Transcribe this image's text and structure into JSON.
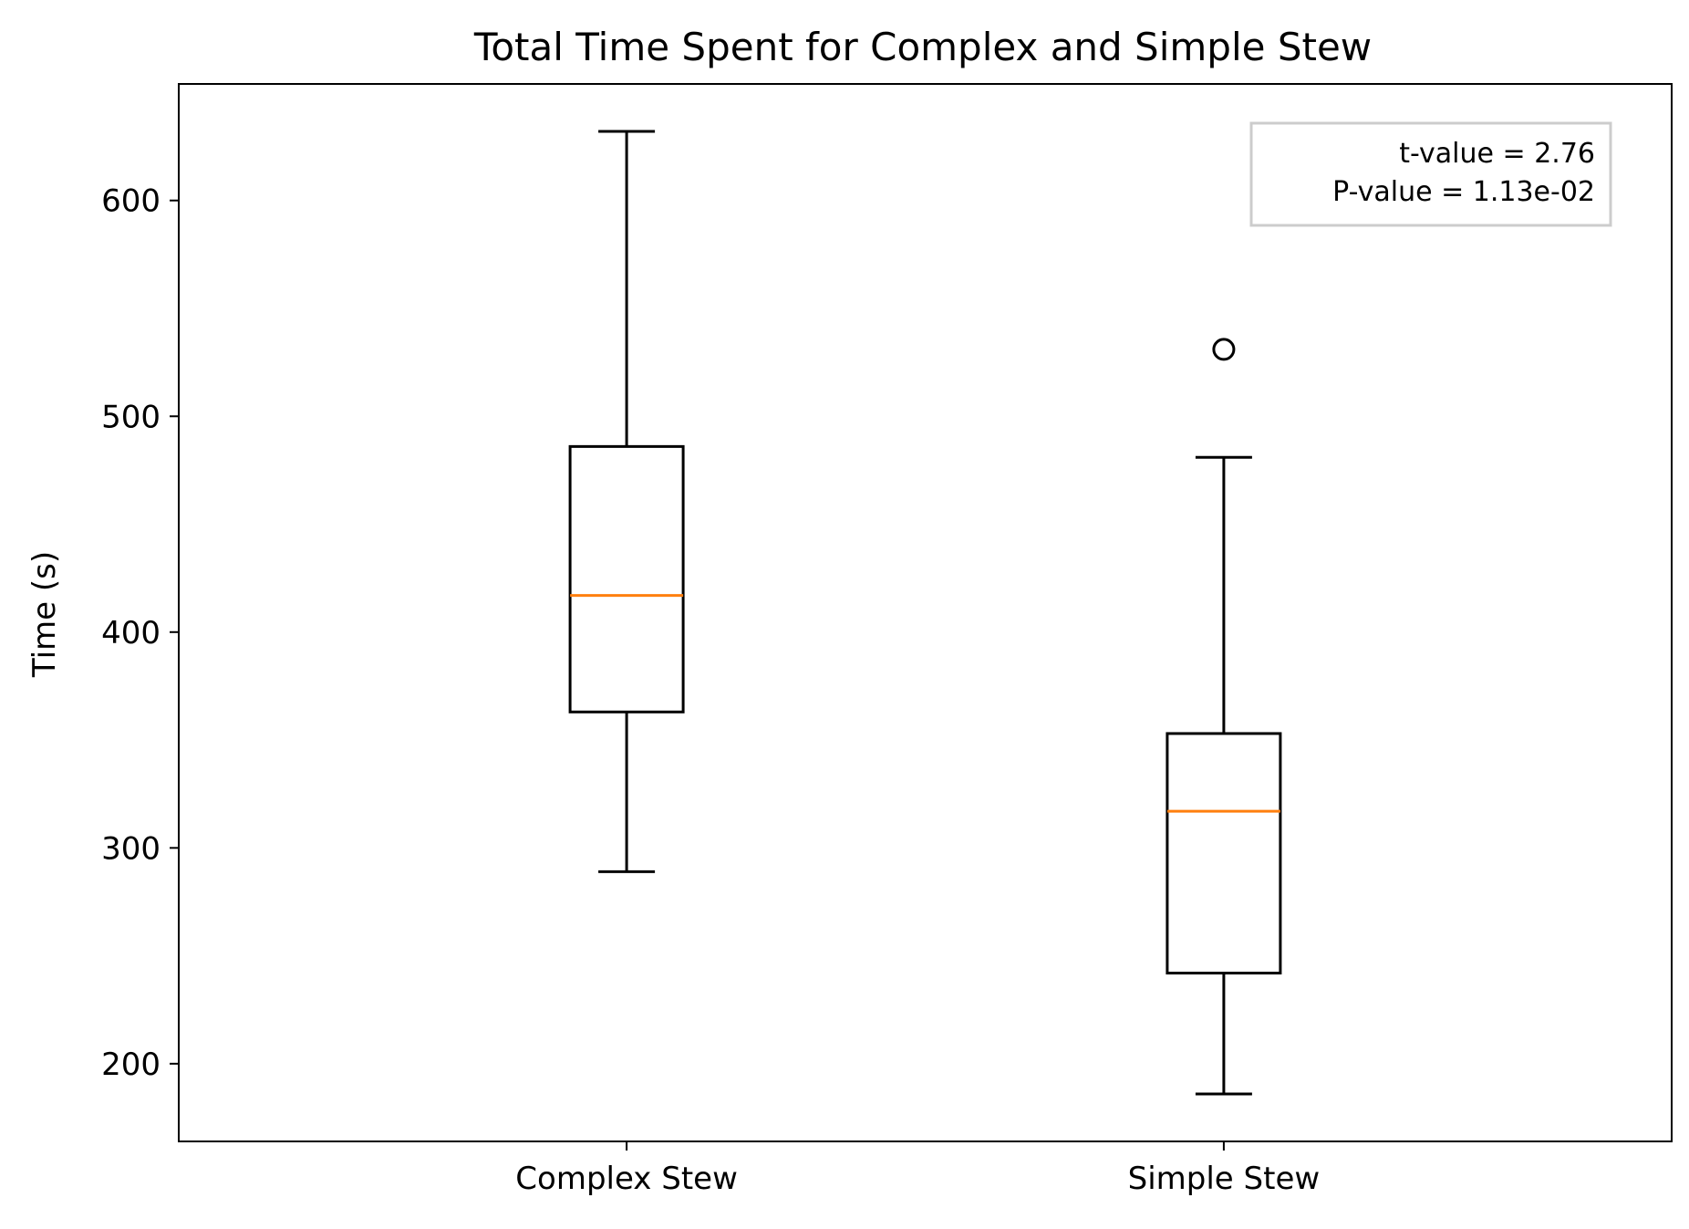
{
  "chart_data": {
    "type": "box",
    "title": "Total Time Spent for Complex and Simple Stew",
    "xlabel": "",
    "ylabel": "Time (s)",
    "ylim": [
      164,
      654
    ],
    "yticks": [
      200,
      300,
      400,
      500,
      600
    ],
    "categories": [
      "Complex Stew",
      "Simple Stew"
    ],
    "boxes": [
      {
        "category": "Complex Stew",
        "whisker_low": 289,
        "q1": 363,
        "median": 417,
        "q3": 486,
        "whisker_high": 632,
        "outliers": []
      },
      {
        "category": "Simple Stew",
        "whisker_low": 186,
        "q1": 242,
        "median": 317,
        "q3": 353,
        "whisker_high": 481,
        "outliers": [
          531
        ]
      }
    ],
    "colors": {
      "box": "#000000",
      "median": "#ff7f0e",
      "stats_border": "#cccccc"
    },
    "stats_box": {
      "position": "top-right",
      "lines": [
        "t-value = 2.76",
        "P-value = 1.13e-02"
      ]
    },
    "grid": false
  }
}
